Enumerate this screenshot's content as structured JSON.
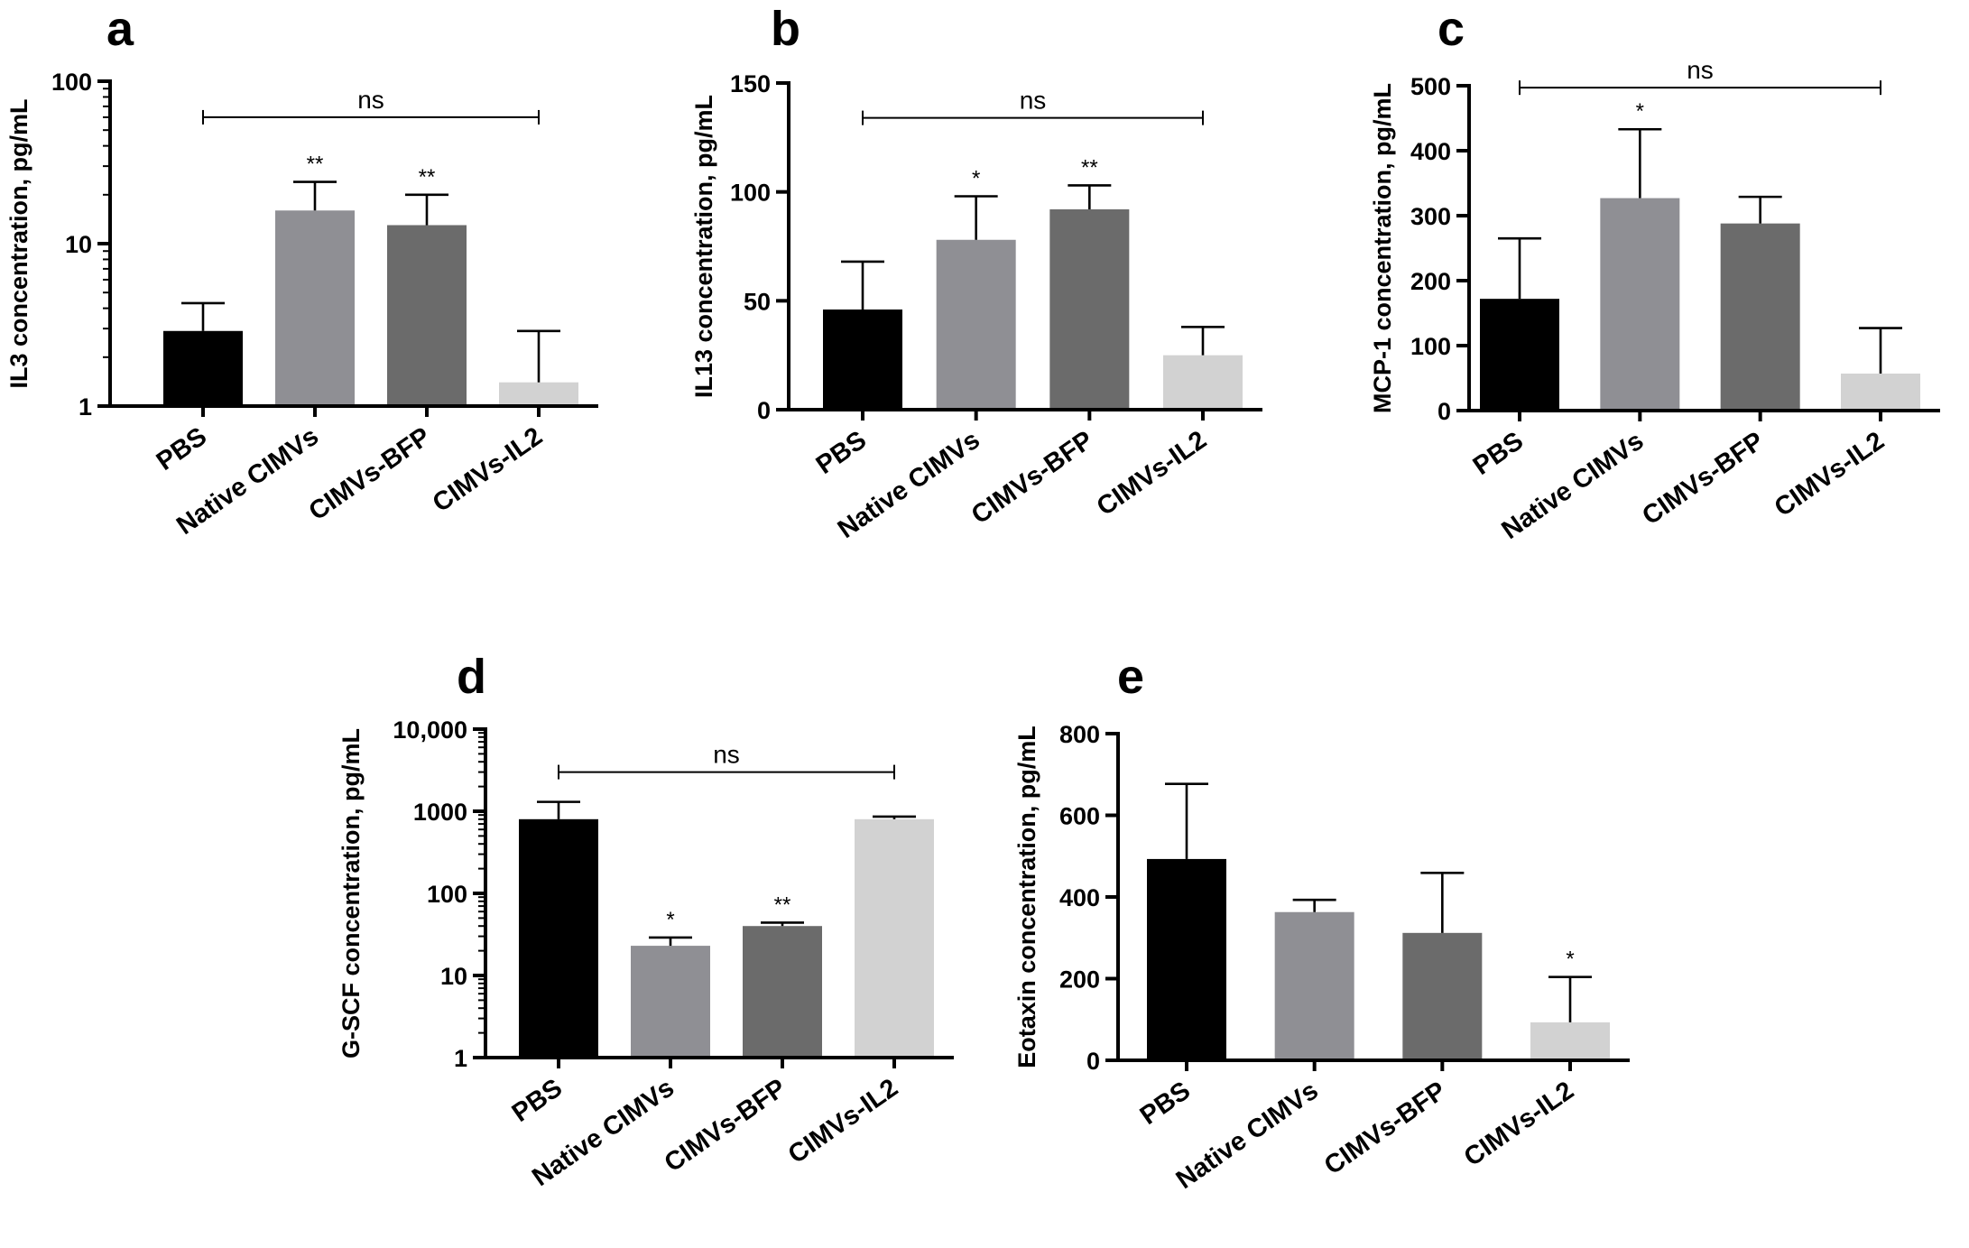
{
  "colors": {
    "PBS": "#000000",
    "Native CIMVs": "#8f8f94",
    "CIMVs-BFP": "#6b6b6b",
    "CIMVs-IL2": "#d2d2d2"
  },
  "chart_data": [
    {
      "panel": "a",
      "type": "bar",
      "scale": "log",
      "ylabel": "IL3 concentration, pg/mL",
      "ylim": [
        1,
        100
      ],
      "yticks": [
        1,
        10,
        100
      ],
      "ytick_labels": [
        "1",
        "10",
        "100"
      ],
      "categories": [
        "PBS",
        "Native CIMVs",
        "CIMVs-BFP",
        "CIMVs-IL2"
      ],
      "values": [
        2.9,
        16,
        13,
        1.4
      ],
      "errors_upper": [
        4.3,
        24,
        20,
        2.9
      ],
      "significance": [
        "",
        "**",
        "**",
        ""
      ],
      "bracket": {
        "label": "ns",
        "from": 0,
        "to": 3,
        "y": 60
      }
    },
    {
      "panel": "b",
      "type": "bar",
      "scale": "linear",
      "ylabel": "IL13 concentration, pg/mL",
      "ylim": [
        0,
        150
      ],
      "yticks": [
        0,
        50,
        100,
        150
      ],
      "ytick_labels": [
        "0",
        "50",
        "100",
        "150"
      ],
      "categories": [
        "PBS",
        "Native CIMVs",
        "CIMVs-BFP",
        "CIMVs-IL2"
      ],
      "values": [
        46,
        78,
        92,
        25
      ],
      "errors_upper": [
        68,
        98,
        103,
        38
      ],
      "significance": [
        "",
        "*",
        "**",
        ""
      ],
      "bracket": {
        "label": "ns",
        "from": 0,
        "to": 3,
        "y": 134
      }
    },
    {
      "panel": "c",
      "type": "bar",
      "scale": "linear",
      "ylabel": "MCP-1 concentration, pg/mL",
      "ylim": [
        0,
        500
      ],
      "yticks": [
        0,
        100,
        200,
        300,
        400,
        500
      ],
      "ytick_labels": [
        "0",
        "100",
        "200",
        "300",
        "400",
        "500"
      ],
      "categories": [
        "PBS",
        "Native CIMVs",
        "CIMVs-BFP",
        "CIMVs-IL2"
      ],
      "values": [
        172,
        327,
        288,
        57
      ],
      "errors_upper": [
        265,
        433,
        329,
        127
      ],
      "significance": [
        "",
        "*",
        "",
        ""
      ],
      "bracket": {
        "label": "ns",
        "from": 0,
        "to": 3,
        "y": 497
      }
    },
    {
      "panel": "d",
      "type": "bar",
      "scale": "log",
      "ylabel": "G-SCF concentration, pg/mL",
      "ylim": [
        1,
        10000
      ],
      "yticks": [
        1,
        10,
        100,
        1000,
        10000
      ],
      "ytick_labels": [
        "1",
        "10",
        "100",
        "1000",
        "10,000"
      ],
      "categories": [
        "PBS",
        "Native CIMVs",
        "CIMVs-BFP",
        "CIMVs-IL2"
      ],
      "values": [
        800,
        23,
        40,
        800
      ],
      "errors_upper": [
        1300,
        29,
        44,
        860
      ],
      "significance": [
        "",
        "*",
        "**",
        ""
      ],
      "bracket": {
        "label": "ns",
        "from": 0,
        "to": 3,
        "y": 3000
      }
    },
    {
      "panel": "e",
      "type": "bar",
      "scale": "linear",
      "ylabel": "Eotaxin concentration, pg/mL",
      "ylim": [
        0,
        800
      ],
      "yticks": [
        0,
        200,
        400,
        600,
        800
      ],
      "ytick_labels": [
        "0",
        "200",
        "400",
        "600",
        "800"
      ],
      "categories": [
        "PBS",
        "Native CIMVs",
        "CIMVs-BFP",
        "CIMVs-IL2"
      ],
      "values": [
        493,
        363,
        312,
        93
      ],
      "errors_upper": [
        677,
        393,
        459,
        204
      ],
      "significance": [
        "",
        "",
        "",
        "*"
      ],
      "bracket": null
    }
  ]
}
